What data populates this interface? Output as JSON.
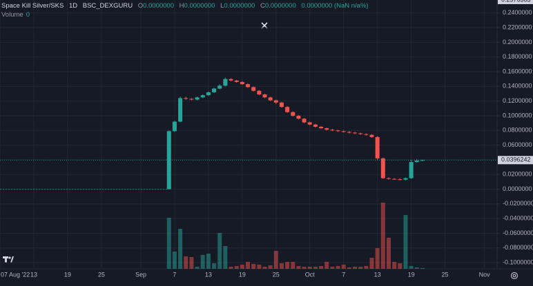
{
  "header": {
    "symbol": "Space Kill Silver/SKS",
    "interval": "1D",
    "exchange": "BSC_DEXGURU",
    "ohlc": [
      {
        "label": "O",
        "value": "0.0000000"
      },
      {
        "label": "H",
        "value": "0.0000000"
      },
      {
        "label": "L",
        "value": "0.0000000"
      },
      {
        "label": "C",
        "value": "0.0000000"
      }
    ],
    "change": "0.0000000 (NaN n/a%)",
    "volume_label": "Volume",
    "volume_value": "0"
  },
  "chart_data": {
    "type": "candlestick",
    "x": [
      "2022-09-06",
      "2022-09-07",
      "2022-09-08",
      "2022-09-09",
      "2022-09-10",
      "2022-09-11",
      "2022-09-12",
      "2022-09-13",
      "2022-09-14",
      "2022-09-15",
      "2022-09-16",
      "2022-09-17",
      "2022-09-18",
      "2022-09-19",
      "2022-09-20",
      "2022-09-21",
      "2022-09-22",
      "2022-09-23",
      "2022-09-24",
      "2022-09-25",
      "2022-09-26",
      "2022-09-27",
      "2022-09-28",
      "2022-09-29",
      "2022-09-30",
      "2022-10-01",
      "2022-10-02",
      "2022-10-03",
      "2022-10-04",
      "2022-10-05",
      "2022-10-06",
      "2022-10-07",
      "2022-10-08",
      "2022-10-09",
      "2022-10-10",
      "2022-10-11",
      "2022-10-12",
      "2022-10-13",
      "2022-10-14",
      "2022-10-15",
      "2022-10-16",
      "2022-10-17",
      "2022-10-18",
      "2022-10-19",
      "2022-10-20",
      "2022-10-21"
    ],
    "open": [
      0,
      0.079,
      0.092,
      0.124,
      0.123,
      0.122,
      0.125,
      0.128,
      0.132,
      0.137,
      0.141,
      0.15,
      0.148,
      0.146,
      0.143,
      0.139,
      0.134,
      0.129,
      0.125,
      0.121,
      0.118,
      0.112,
      0.105,
      0.1,
      0.096,
      0.091,
      0.088,
      0.085,
      0.083,
      0.081,
      0.08,
      0.079,
      0.078,
      0.077,
      0.076,
      0.075,
      0.074,
      0.071,
      0.042,
      0.015,
      0.014,
      0.0135,
      0.013,
      0.015,
      0.037,
      0.039
    ],
    "high": [
      0.08,
      0.093,
      0.126,
      0.126,
      0.124,
      0.126,
      0.129,
      0.133,
      0.138,
      0.143,
      0.152,
      0.151,
      0.149,
      0.147,
      0.144,
      0.14,
      0.135,
      0.13,
      0.126,
      0.122,
      0.119,
      0.113,
      0.106,
      0.101,
      0.097,
      0.092,
      0.089,
      0.086,
      0.084,
      0.082,
      0.081,
      0.08,
      0.079,
      0.078,
      0.077,
      0.076,
      0.075,
      0.072,
      0.043,
      0.016,
      0.015,
      0.015,
      0.016,
      0.04,
      0.041,
      0.04
    ],
    "low": [
      0,
      0.078,
      0.091,
      0.122,
      0.121,
      0.121,
      0.124,
      0.127,
      0.131,
      0.136,
      0.14,
      0.147,
      0.145,
      0.142,
      0.138,
      0.133,
      0.128,
      0.124,
      0.12,
      0.116,
      0.111,
      0.104,
      0.099,
      0.095,
      0.09,
      0.087,
      0.084,
      0.082,
      0.08,
      0.079,
      0.078,
      0.077,
      0.076,
      0.075,
      0.074,
      0.073,
      0.07,
      0.04,
      0.014,
      0.013,
      0.013,
      0.012,
      0.012,
      0.014,
      0.036,
      0.038
    ],
    "close": [
      0.079,
      0.092,
      0.124,
      0.123,
      0.122,
      0.125,
      0.128,
      0.132,
      0.137,
      0.141,
      0.15,
      0.148,
      0.146,
      0.143,
      0.139,
      0.134,
      0.129,
      0.125,
      0.121,
      0.118,
      0.112,
      0.105,
      0.1,
      0.096,
      0.091,
      0.088,
      0.085,
      0.083,
      0.081,
      0.08,
      0.079,
      0.078,
      0.077,
      0.076,
      0.075,
      0.074,
      0.071,
      0.042,
      0.015,
      0.014,
      0.0135,
      0.013,
      0.015,
      0.037,
      0.039,
      0.0396242
    ],
    "up_color": "#26a69a",
    "down_color": "#ef5350",
    "volume": {
      "values": [
        74,
        25,
        58,
        18,
        17,
        3,
        20,
        22,
        8,
        52,
        33,
        3,
        4,
        6,
        10,
        7,
        6,
        3,
        5,
        26,
        8,
        10,
        10,
        4,
        3,
        3,
        3,
        4,
        10,
        3,
        4,
        6,
        2,
        3,
        3,
        4,
        16,
        30,
        96,
        45,
        10,
        8,
        78,
        4,
        2,
        1
      ],
      "ylim": [
        0,
        100
      ]
    },
    "xlim": [
      "2022-08-07",
      "2022-11-03"
    ],
    "xticks": [
      {
        "value": "2022-08-07",
        "label": "07 Aug '22"
      },
      {
        "value": "2022-08-13",
        "label": "13"
      },
      {
        "value": "2022-08-19",
        "label": "19"
      },
      {
        "value": "2022-08-25",
        "label": "25"
      },
      {
        "value": "2022-09-01",
        "label": "Sep"
      },
      {
        "value": "2022-09-07",
        "label": "7"
      },
      {
        "value": "2022-09-13",
        "label": "13"
      },
      {
        "value": "2022-09-19",
        "label": "19"
      },
      {
        "value": "2022-09-25",
        "label": "25"
      },
      {
        "value": "2022-10-01",
        "label": "Oct"
      },
      {
        "value": "2022-10-07",
        "label": "7"
      },
      {
        "value": "2022-10-13",
        "label": "13"
      },
      {
        "value": "2022-10-19",
        "label": "19"
      },
      {
        "value": "2022-10-25",
        "label": "25"
      },
      {
        "value": "2022-11-01",
        "label": "Nov"
      }
    ],
    "ylim": [
      -0.1065,
      0.2576363
    ],
    "yticks": [
      {
        "value": 0.24,
        "label": "0.2400000"
      },
      {
        "value": 0.22,
        "label": "0.2200000"
      },
      {
        "value": 0.2,
        "label": "0.2000000"
      },
      {
        "value": 0.18,
        "label": "0.1800000"
      },
      {
        "value": 0.16,
        "label": "0.1600000"
      },
      {
        "value": 0.14,
        "label": "0.1400000"
      },
      {
        "value": 0.12,
        "label": "0.1200000"
      },
      {
        "value": 0.1,
        "label": "0.1000000"
      },
      {
        "value": 0.08,
        "label": "0.0800000"
      },
      {
        "value": 0.06,
        "label": "0.0600000"
      },
      {
        "value": 0.04,
        "label": "0.0400000"
      },
      {
        "value": 0.02,
        "label": "0.0200000"
      },
      {
        "value": 0,
        "label": "0.0000000"
      },
      {
        "value": -0.02,
        "label": "-0.0200000"
      },
      {
        "value": -0.04,
        "label": "-0.0400000"
      },
      {
        "value": -0.06,
        "label": "-0.0600000"
      },
      {
        "value": -0.08,
        "label": "-0.0800000"
      },
      {
        "value": -0.1,
        "label": "-0.1000000"
      }
    ],
    "grid": true
  }
}
